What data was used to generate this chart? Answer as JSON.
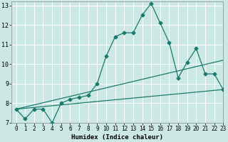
{
  "xlabel": "Humidex (Indice chaleur)",
  "xlim": [
    -0.5,
    23
  ],
  "ylim": [
    7,
    13.2
  ],
  "yticks": [
    7,
    8,
    9,
    10,
    11,
    12,
    13
  ],
  "xticks": [
    0,
    1,
    2,
    3,
    4,
    5,
    6,
    7,
    8,
    9,
    10,
    11,
    12,
    13,
    14,
    15,
    16,
    17,
    18,
    19,
    20,
    21,
    22,
    23
  ],
  "bg_color": "#cce8e4",
  "grid_color": "#ffffff",
  "line_color": "#1a7a6e",
  "lines": [
    {
      "x": [
        0,
        1,
        2,
        3,
        4,
        5,
        6,
        7,
        8,
        9,
        10,
        11,
        12,
        13,
        14,
        15,
        16,
        17,
        18,
        19,
        20,
        21,
        22,
        23
      ],
      "y": [
        7.7,
        7.2,
        7.7,
        7.7,
        7.0,
        8.0,
        8.2,
        8.3,
        8.4,
        9.0,
        10.4,
        11.4,
        11.6,
        11.6,
        12.5,
        13.1,
        12.1,
        11.1,
        9.3,
        10.1,
        10.8,
        9.5,
        9.5,
        8.7
      ],
      "marker": "D",
      "markersize": 2.5,
      "linewidth": 0.9
    },
    {
      "x": [
        0,
        23
      ],
      "y": [
        7.7,
        10.2
      ],
      "marker": null,
      "markersize": 0,
      "linewidth": 0.9
    },
    {
      "x": [
        0,
        23
      ],
      "y": [
        7.7,
        8.7
      ],
      "marker": null,
      "markersize": 0,
      "linewidth": 0.9
    }
  ]
}
